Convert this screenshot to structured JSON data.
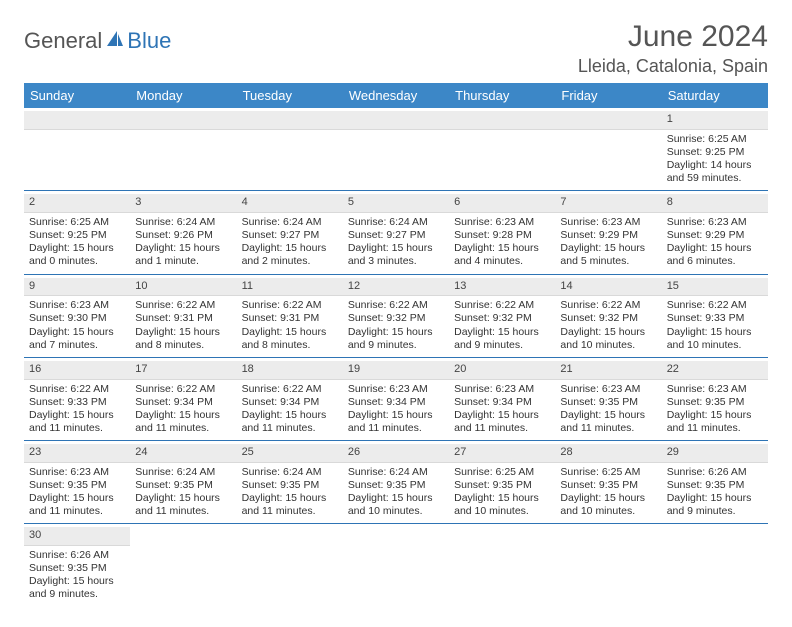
{
  "brand": {
    "part1": "General",
    "part2": "Blue"
  },
  "title": "June 2024",
  "location": "Lleida, Catalonia, Spain",
  "dayNames": [
    "Sunday",
    "Monday",
    "Tuesday",
    "Wednesday",
    "Thursday",
    "Friday",
    "Saturday"
  ],
  "colors": {
    "headerBg": "#3c87c7",
    "accent": "#2e74b5",
    "dayNumBg": "#ececec",
    "text": "#333333",
    "background": "#ffffff"
  },
  "weeks": [
    [
      {
        "day": null
      },
      {
        "day": null
      },
      {
        "day": null
      },
      {
        "day": null
      },
      {
        "day": null
      },
      {
        "day": null
      },
      {
        "day": 1,
        "sunrise": "Sunrise: 6:25 AM",
        "sunset": "Sunset: 9:25 PM",
        "daylight1": "Daylight: 14 hours",
        "daylight2": "and 59 minutes."
      }
    ],
    [
      {
        "day": 2,
        "sunrise": "Sunrise: 6:25 AM",
        "sunset": "Sunset: 9:25 PM",
        "daylight1": "Daylight: 15 hours",
        "daylight2": "and 0 minutes."
      },
      {
        "day": 3,
        "sunrise": "Sunrise: 6:24 AM",
        "sunset": "Sunset: 9:26 PM",
        "daylight1": "Daylight: 15 hours",
        "daylight2": "and 1 minute."
      },
      {
        "day": 4,
        "sunrise": "Sunrise: 6:24 AM",
        "sunset": "Sunset: 9:27 PM",
        "daylight1": "Daylight: 15 hours",
        "daylight2": "and 2 minutes."
      },
      {
        "day": 5,
        "sunrise": "Sunrise: 6:24 AM",
        "sunset": "Sunset: 9:27 PM",
        "daylight1": "Daylight: 15 hours",
        "daylight2": "and 3 minutes."
      },
      {
        "day": 6,
        "sunrise": "Sunrise: 6:23 AM",
        "sunset": "Sunset: 9:28 PM",
        "daylight1": "Daylight: 15 hours",
        "daylight2": "and 4 minutes."
      },
      {
        "day": 7,
        "sunrise": "Sunrise: 6:23 AM",
        "sunset": "Sunset: 9:29 PM",
        "daylight1": "Daylight: 15 hours",
        "daylight2": "and 5 minutes."
      },
      {
        "day": 8,
        "sunrise": "Sunrise: 6:23 AM",
        "sunset": "Sunset: 9:29 PM",
        "daylight1": "Daylight: 15 hours",
        "daylight2": "and 6 minutes."
      }
    ],
    [
      {
        "day": 9,
        "sunrise": "Sunrise: 6:23 AM",
        "sunset": "Sunset: 9:30 PM",
        "daylight1": "Daylight: 15 hours",
        "daylight2": "and 7 minutes."
      },
      {
        "day": 10,
        "sunrise": "Sunrise: 6:22 AM",
        "sunset": "Sunset: 9:31 PM",
        "daylight1": "Daylight: 15 hours",
        "daylight2": "and 8 minutes."
      },
      {
        "day": 11,
        "sunrise": "Sunrise: 6:22 AM",
        "sunset": "Sunset: 9:31 PM",
        "daylight1": "Daylight: 15 hours",
        "daylight2": "and 8 minutes."
      },
      {
        "day": 12,
        "sunrise": "Sunrise: 6:22 AM",
        "sunset": "Sunset: 9:32 PM",
        "daylight1": "Daylight: 15 hours",
        "daylight2": "and 9 minutes."
      },
      {
        "day": 13,
        "sunrise": "Sunrise: 6:22 AM",
        "sunset": "Sunset: 9:32 PM",
        "daylight1": "Daylight: 15 hours",
        "daylight2": "and 9 minutes."
      },
      {
        "day": 14,
        "sunrise": "Sunrise: 6:22 AM",
        "sunset": "Sunset: 9:32 PM",
        "daylight1": "Daylight: 15 hours",
        "daylight2": "and 10 minutes."
      },
      {
        "day": 15,
        "sunrise": "Sunrise: 6:22 AM",
        "sunset": "Sunset: 9:33 PM",
        "daylight1": "Daylight: 15 hours",
        "daylight2": "and 10 minutes."
      }
    ],
    [
      {
        "day": 16,
        "sunrise": "Sunrise: 6:22 AM",
        "sunset": "Sunset: 9:33 PM",
        "daylight1": "Daylight: 15 hours",
        "daylight2": "and 11 minutes."
      },
      {
        "day": 17,
        "sunrise": "Sunrise: 6:22 AM",
        "sunset": "Sunset: 9:34 PM",
        "daylight1": "Daylight: 15 hours",
        "daylight2": "and 11 minutes."
      },
      {
        "day": 18,
        "sunrise": "Sunrise: 6:22 AM",
        "sunset": "Sunset: 9:34 PM",
        "daylight1": "Daylight: 15 hours",
        "daylight2": "and 11 minutes."
      },
      {
        "day": 19,
        "sunrise": "Sunrise: 6:23 AM",
        "sunset": "Sunset: 9:34 PM",
        "daylight1": "Daylight: 15 hours",
        "daylight2": "and 11 minutes."
      },
      {
        "day": 20,
        "sunrise": "Sunrise: 6:23 AM",
        "sunset": "Sunset: 9:34 PM",
        "daylight1": "Daylight: 15 hours",
        "daylight2": "and 11 minutes."
      },
      {
        "day": 21,
        "sunrise": "Sunrise: 6:23 AM",
        "sunset": "Sunset: 9:35 PM",
        "daylight1": "Daylight: 15 hours",
        "daylight2": "and 11 minutes."
      },
      {
        "day": 22,
        "sunrise": "Sunrise: 6:23 AM",
        "sunset": "Sunset: 9:35 PM",
        "daylight1": "Daylight: 15 hours",
        "daylight2": "and 11 minutes."
      }
    ],
    [
      {
        "day": 23,
        "sunrise": "Sunrise: 6:23 AM",
        "sunset": "Sunset: 9:35 PM",
        "daylight1": "Daylight: 15 hours",
        "daylight2": "and 11 minutes."
      },
      {
        "day": 24,
        "sunrise": "Sunrise: 6:24 AM",
        "sunset": "Sunset: 9:35 PM",
        "daylight1": "Daylight: 15 hours",
        "daylight2": "and 11 minutes."
      },
      {
        "day": 25,
        "sunrise": "Sunrise: 6:24 AM",
        "sunset": "Sunset: 9:35 PM",
        "daylight1": "Daylight: 15 hours",
        "daylight2": "and 11 minutes."
      },
      {
        "day": 26,
        "sunrise": "Sunrise: 6:24 AM",
        "sunset": "Sunset: 9:35 PM",
        "daylight1": "Daylight: 15 hours",
        "daylight2": "and 10 minutes."
      },
      {
        "day": 27,
        "sunrise": "Sunrise: 6:25 AM",
        "sunset": "Sunset: 9:35 PM",
        "daylight1": "Daylight: 15 hours",
        "daylight2": "and 10 minutes."
      },
      {
        "day": 28,
        "sunrise": "Sunrise: 6:25 AM",
        "sunset": "Sunset: 9:35 PM",
        "daylight1": "Daylight: 15 hours",
        "daylight2": "and 10 minutes."
      },
      {
        "day": 29,
        "sunrise": "Sunrise: 6:26 AM",
        "sunset": "Sunset: 9:35 PM",
        "daylight1": "Daylight: 15 hours",
        "daylight2": "and 9 minutes."
      }
    ],
    [
      {
        "day": 30,
        "sunrise": "Sunrise: 6:26 AM",
        "sunset": "Sunset: 9:35 PM",
        "daylight1": "Daylight: 15 hours",
        "daylight2": "and 9 minutes."
      },
      {
        "day": null
      },
      {
        "day": null
      },
      {
        "day": null
      },
      {
        "day": null
      },
      {
        "day": null
      },
      {
        "day": null
      }
    ]
  ]
}
